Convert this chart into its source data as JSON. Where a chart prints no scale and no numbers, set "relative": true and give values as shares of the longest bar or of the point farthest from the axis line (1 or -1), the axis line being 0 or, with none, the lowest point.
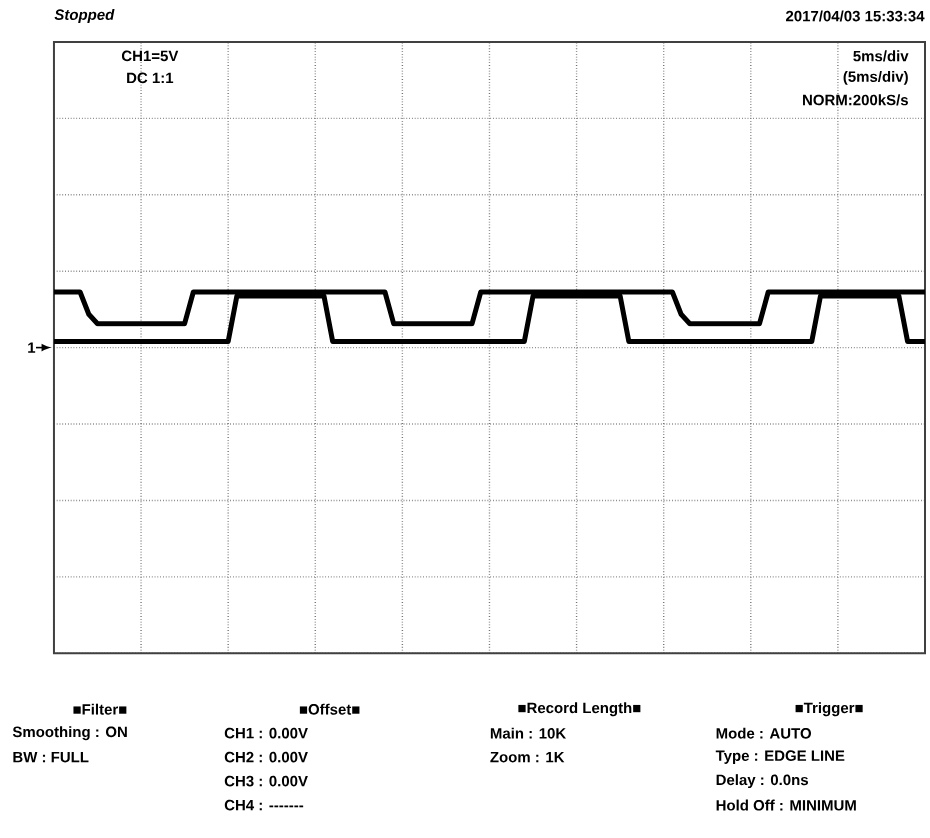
{
  "chart_data": {
    "type": "line",
    "relative": true,
    "grid": true,
    "categories": [
      null,
      null,
      null,
      null,
      null,
      null,
      null,
      null,
      null,
      null,
      null,
      null,
      null,
      null,
      null,
      null,
      null,
      null,
      null,
      null,
      null,
      null,
      null,
      null,
      null,
      null,
      null,
      null,
      null,
      null,
      null,
      null,
      null,
      null,
      null,
      null,
      null,
      null,
      null,
      null,
      null,
      null,
      null,
      null,
      null,
      null,
      null,
      null,
      null,
      null,
      null,
      null,
      null,
      null,
      null,
      null,
      null,
      null,
      null,
      null,
      null,
      null,
      null,
      null,
      null,
      null,
      null,
      null,
      null,
      null,
      null,
      null,
      null,
      null,
      null,
      null,
      null,
      null,
      null,
      null,
      null,
      null,
      null,
      null,
      null,
      null,
      null,
      null,
      null,
      null,
      null,
      null,
      null,
      null,
      null,
      null,
      null,
      null,
      null,
      null,
      null
    ],
    "series": [
      {
        "color": "#000000",
        "values": [
          1,
          1,
          1,
          1,
          0.6,
          0.43,
          0.43,
          0.43,
          0.43,
          0.43,
          0.43,
          0.43,
          0.43,
          0.43,
          0.43,
          0.43,
          1,
          1,
          1,
          1,
          1,
          1,
          1,
          1,
          1,
          1,
          1,
          1,
          1,
          1,
          1,
          1,
          1,
          1,
          1,
          1,
          1,
          1,
          1,
          0.43,
          0.43,
          0.43,
          0.43,
          0.43,
          0.43,
          0.43,
          0.43,
          0.43,
          0.43,
          1,
          1,
          1,
          1,
          1,
          1,
          1,
          1,
          1,
          1,
          1,
          1,
          1,
          1,
          1,
          1,
          1,
          1,
          1,
          1,
          1,
          1,
          1,
          0.6,
          0.43,
          0.43,
          0.43,
          0.43,
          0.43,
          0.43,
          0.43,
          0.43,
          0.43,
          1,
          1,
          1,
          1,
          1,
          1,
          1,
          1,
          1,
          1,
          1,
          1,
          1,
          1,
          1,
          1,
          1,
          1,
          1
        ]
      },
      {
        "color": "#000000",
        "values": [
          0.11,
          0.11,
          0.11,
          0.11,
          0.11,
          0.11,
          0.11,
          0.11,
          0.11,
          0.11,
          0.11,
          0.11,
          0.11,
          0.11,
          0.11,
          0.11,
          0.11,
          0.11,
          0.11,
          0.11,
          0.11,
          0.93,
          0.93,
          0.93,
          0.93,
          0.93,
          0.93,
          0.93,
          0.93,
          0.93,
          0.93,
          0.93,
          0.11,
          0.11,
          0.11,
          0.11,
          0.11,
          0.11,
          0.11,
          0.11,
          0.11,
          0.11,
          0.11,
          0.11,
          0.11,
          0.11,
          0.11,
          0.11,
          0.11,
          0.11,
          0.11,
          0.11,
          0.11,
          0.11,
          0.11,
          0.93,
          0.93,
          0.93,
          0.93,
          0.93,
          0.93,
          0.93,
          0.93,
          0.93,
          0.93,
          0.93,
          0.11,
          0.11,
          0.11,
          0.11,
          0.11,
          0.11,
          0.11,
          0.11,
          0.11,
          0.11,
          0.11,
          0.11,
          0.11,
          0.11,
          0.11,
          0.11,
          0.11,
          0.11,
          0.11,
          0.11,
          0.11,
          0.11,
          0.93,
          0.93,
          0.93,
          0.93,
          0.93,
          0.93,
          0.93,
          0.93,
          0.93,
          0.93,
          0.11,
          0.11,
          0.11
        ]
      }
    ],
    "annotations": [
      "Stopped",
      "2017/04/03 15:33:34",
      "CH1=5V",
      "DC 1:1",
      "5ms/div",
      "(5ms/div)",
      "NORM:200kS/s",
      "■Filter■",
      "Smoothing : ON",
      "BW : FULL",
      "■Offset■",
      "CH1 : 0.00V",
      "CH2 : 0.00V",
      "CH3 : 0.00V",
      "CH4 : -------",
      "■Record Length■",
      "Main : 10K",
      "Zoom : 1K",
      "■Trigger■",
      "Mode : AUTO",
      "Type : EDGE LINE",
      "Delay : 0.0ns",
      "Hold Off : MINIMUM",
      "1"
    ]
  }
}
